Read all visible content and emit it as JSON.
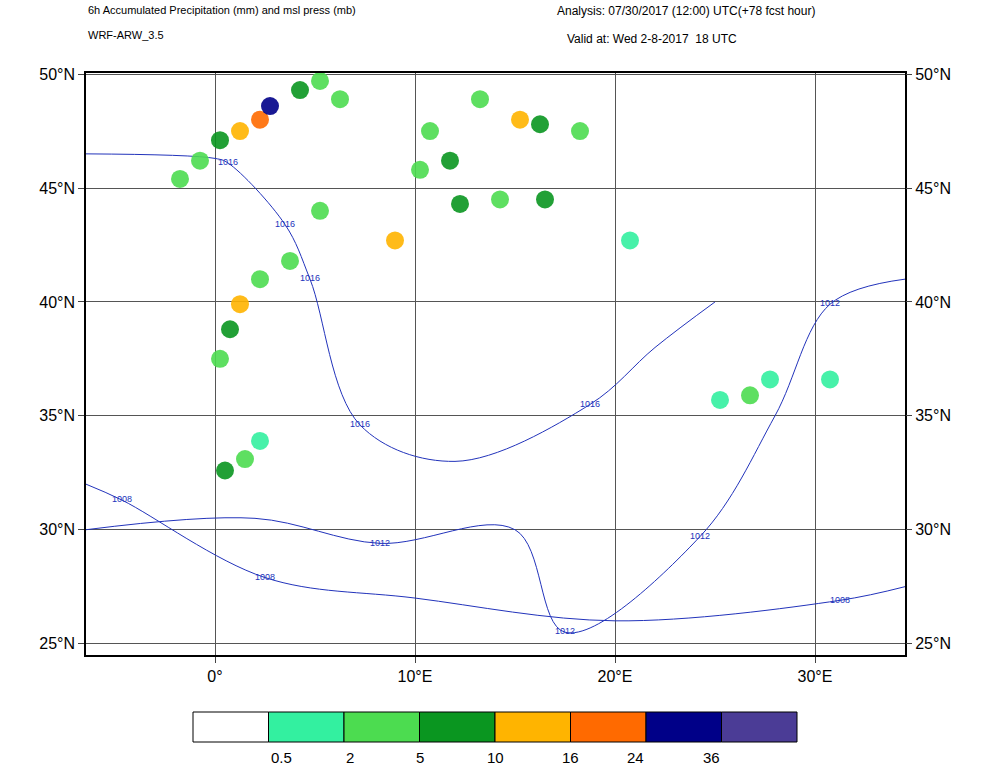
{
  "chart_data": {
    "type": "map",
    "title": "6h Accumulated Precipitation (mm) and msl press (mb)",
    "subtitle": "WRF-ARW_3.5",
    "analysis": "Analysis: 07/30/2017 (12:00) UTC(+78 fcst hour)",
    "valid": "Valid at: Wed 2-8-2017  18 UTC",
    "xlim": [
      -6.45,
      34.5
    ],
    "ylim": [
      24.5,
      50.05
    ],
    "xticks": [
      {
        "value": 0,
        "label": "0°"
      },
      {
        "value": 10,
        "label": "10°E"
      },
      {
        "value": 20,
        "label": "20°E"
      },
      {
        "value": 30,
        "label": "30°E"
      }
    ],
    "yticks": [
      {
        "value": 25,
        "label": "25°N"
      },
      {
        "value": 30,
        "label": "30°N"
      },
      {
        "value": 35,
        "label": "35°N"
      },
      {
        "value": 40,
        "label": "40°N"
      },
      {
        "value": 45,
        "label": "45°N"
      },
      {
        "value": 50,
        "label": "50°N"
      }
    ],
    "grid": true,
    "colorbar": {
      "levels": [
        0.5,
        2,
        5,
        10,
        16,
        24,
        36
      ],
      "colors": [
        "#ffffff",
        "#33f0a0",
        "#4cdc50",
        "#0a9620",
        "#ffb400",
        "#ff6a00",
        "#000088",
        "#4b3c96"
      ]
    },
    "precipitation": {
      "lon": [
        2.25,
        2.75,
        1.25,
        0.25,
        -0.75,
        -1.75,
        4.25,
        5.25,
        6.25,
        13.25,
        15.25,
        16.25,
        18.25,
        10.75,
        11.75,
        10.25,
        12.25,
        14.25,
        16.5,
        5.25,
        9.0,
        20.75,
        1.25,
        0.75,
        0.25,
        2.25,
        3.75,
        1.5,
        0.5,
        2.25,
        26.75,
        27.75,
        30.75,
        25.25
      ],
      "lat": [
        48.0,
        48.6,
        47.5,
        47.1,
        46.2,
        45.4,
        49.3,
        49.7,
        48.9,
        48.9,
        48.0,
        47.8,
        47.5,
        47.5,
        46.2,
        45.8,
        44.3,
        44.5,
        44.5,
        44.0,
        42.7,
        42.7,
        39.9,
        38.8,
        37.5,
        41.0,
        41.8,
        33.1,
        32.6,
        33.9,
        35.9,
        36.6,
        36.6,
        35.7
      ],
      "values": [
        16,
        24,
        10,
        5,
        2,
        2,
        5,
        2,
        2,
        2,
        10,
        5,
        2,
        2,
        5,
        2,
        5,
        2,
        5,
        2,
        10,
        0.5,
        10,
        5,
        2,
        2,
        2,
        2,
        5,
        0.5,
        2,
        0.5,
        0.5,
        0.5
      ]
    },
    "isobars": [
      {
        "value": 1016,
        "lon": [
          -6.45,
          0,
          0.65,
          3.5,
          4.75,
          7.25,
          12,
          18.75,
          22,
          25
        ],
        "lat": [
          46.5,
          46.3,
          46.1,
          43.4,
          41.0,
          34.6,
          33.0,
          35.5,
          38.0,
          40.0
        ],
        "label_lon": [
          0.65,
          3.5,
          4.75,
          7.25,
          18.75
        ],
        "label_lat": [
          46.1,
          43.4,
          41.0,
          34.6,
          35.5
        ]
      },
      {
        "value": 1012,
        "lon": [
          -6.45,
          2,
          8.25,
          15,
          17.5,
          24.25,
          28,
          30.75,
          34.5
        ],
        "lat": [
          30.0,
          30.5,
          29.4,
          30.0,
          25.5,
          29.7,
          35.0,
          39.9,
          41.0
        ],
        "label_lon": [
          8.25,
          17.5,
          24.25,
          30.75
        ],
        "label_lat": [
          29.4,
          25.5,
          29.7,
          39.9
        ]
      },
      {
        "value": 1008,
        "lon": [
          -6.45,
          -4.65,
          2.5,
          10,
          20,
          31.25,
          34.5
        ],
        "lat": [
          32.0,
          31.3,
          27.9,
          27.0,
          26.0,
          26.9,
          27.5
        ],
        "label_lon": [
          -4.65,
          2.5,
          31.25
        ],
        "label_lat": [
          31.3,
          27.9,
          26.9
        ]
      }
    ]
  }
}
